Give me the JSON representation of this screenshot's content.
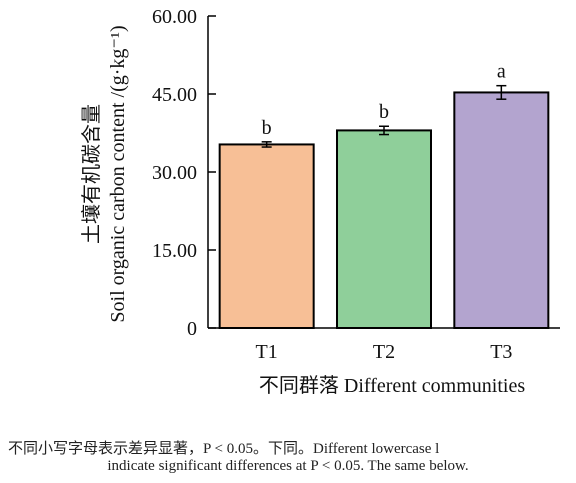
{
  "chart_data": {
    "type": "bar",
    "categories": [
      "T1",
      "T2",
      "T3"
    ],
    "values": [
      35.3,
      38.0,
      45.3
    ],
    "errors": [
      0.5,
      0.8,
      1.3
    ],
    "significance_letters": [
      "b",
      "b",
      "a"
    ],
    "bar_colors": [
      "#f7bf96",
      "#8fcf9a",
      "#b3a4cf"
    ],
    "ylim": [
      0,
      60
    ],
    "yticks": [
      "0",
      "15.00",
      "30.00",
      "45.00",
      "60.00"
    ],
    "xlabel": "不同群落 Different communities",
    "ylabel_cn": "土壤有机碳含量",
    "ylabel_en": "Soil organic carbon content /(g·kg⁻¹)",
    "grid": false,
    "legend": "none"
  },
  "caption": {
    "line1": "不同小写字母表示差异显著，P < 0.05。下同。Different lowercase l",
    "line2": "indicate significant differences at P < 0.05. The same below."
  }
}
